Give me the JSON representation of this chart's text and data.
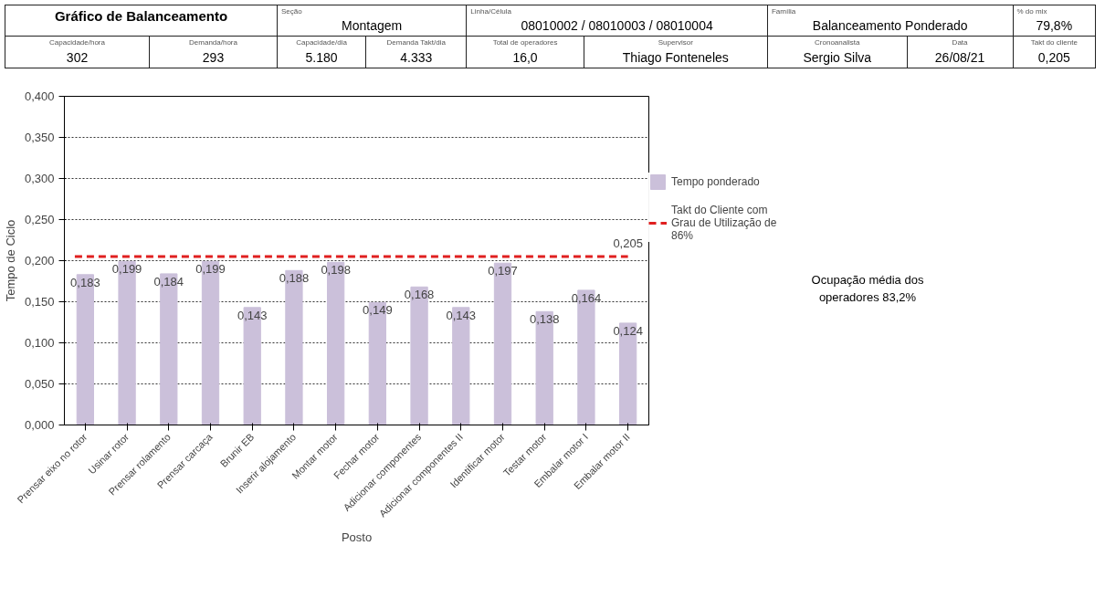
{
  "chart_data": {
    "type": "bar",
    "title": "Gráfico de Balanceamento",
    "xlabel": "Posto",
    "ylabel": "Tempo de Ciclo",
    "categories": [
      "Prensar eixo no rotor",
      "Usinar rotor",
      "Prensar rolamento",
      "Prensar carcaça",
      "Brunir EB",
      "Inserir alojamento",
      "Montar motor",
      "Fechar motor",
      "Adicionar componentes",
      "Adicionar componentes II",
      "Identificar motor",
      "Testar motor",
      "Embalar motor I",
      "Embalar motor II"
    ],
    "series": [
      {
        "name": "Tempo ponderado",
        "color": "#cbc0da",
        "values": [
          0.183,
          0.199,
          0.184,
          0.199,
          0.143,
          0.188,
          0.198,
          0.149,
          0.168,
          0.143,
          0.197,
          0.138,
          0.164,
          0.124
        ],
        "value_labels": [
          "0,183",
          "0,199",
          "0,184",
          "0,199",
          "0,143",
          "0,188",
          "0,198",
          "0,149",
          "0,168",
          "0,143",
          "0,197",
          "0,138",
          "0,164",
          "0,124"
        ]
      }
    ],
    "ylim": [
      0,
      0.4
    ],
    "yticks": [
      {
        "value": 0,
        "label": "0,000"
      },
      {
        "value": 0.05,
        "label": "0,050"
      },
      {
        "value": 0.1,
        "label": "0,100"
      },
      {
        "value": 0.15,
        "label": "0,150"
      },
      {
        "value": 0.2,
        "label": "0,200"
      },
      {
        "value": 0.25,
        "label": "0,250"
      },
      {
        "value": 0.3,
        "label": "0,300"
      },
      {
        "value": 0.35,
        "label": "0,350"
      },
      {
        "value": 0.4,
        "label": "0,400"
      }
    ],
    "ref_lines": [
      {
        "axis": "y",
        "value": 0.205,
        "label": "Takt do Cliente com Grau de Utilização de 86%",
        "color": "#e02020",
        "line_style": "dashed"
      }
    ],
    "grid": "y",
    "legend": "right",
    "annotations": [
      "Seção",
      "Montagem",
      "Linha/Célula",
      "08010002 / 08010003 / 08010004",
      "Família",
      "Balanceamento Ponderado",
      "% do mix",
      "79,8%",
      "Capacidade/hora",
      "302",
      "Demanda/hora",
      "293",
      "Capacidade/dia",
      "5.180",
      "Demanda Takt/dia",
      "4.333",
      "Total de operadores",
      "16,0",
      "Supervisor",
      "Thiago Fonteneles",
      "Cronoanalista",
      "Sergio Silva",
      "Data",
      "26/08/21",
      "Takt do cliente",
      "0,205",
      "Ocupação média dos operadores 83,2%",
      {
        "text": "0,205",
        "x": "Embalar motor II",
        "y": 0.205
      }
    ]
  }
}
